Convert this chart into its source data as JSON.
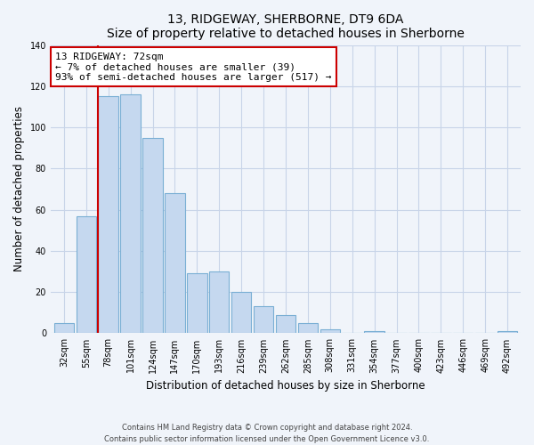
{
  "title": "13, RIDGEWAY, SHERBORNE, DT9 6DA",
  "subtitle": "Size of property relative to detached houses in Sherborne",
  "xlabel": "Distribution of detached houses by size in Sherborne",
  "ylabel": "Number of detached properties",
  "categories": [
    "32sqm",
    "55sqm",
    "78sqm",
    "101sqm",
    "124sqm",
    "147sqm",
    "170sqm",
    "193sqm",
    "216sqm",
    "239sqm",
    "262sqm",
    "285sqm",
    "308sqm",
    "331sqm",
    "354sqm",
    "377sqm",
    "400sqm",
    "423sqm",
    "446sqm",
    "469sqm",
    "492sqm"
  ],
  "values": [
    5,
    57,
    115,
    116,
    95,
    68,
    29,
    30,
    20,
    13,
    9,
    5,
    2,
    0,
    1,
    0,
    0,
    0,
    0,
    0,
    1
  ],
  "bar_color": "#c5d8ef",
  "bar_edge_color": "#7aafd4",
  "vline_color": "#cc0000",
  "annotation_text": "13 RIDGEWAY: 72sqm\n← 7% of detached houses are smaller (39)\n93% of semi-detached houses are larger (517) →",
  "annotation_box_color": "#ffffff",
  "annotation_box_edge": "#cc0000",
  "ylim": [
    0,
    140
  ],
  "yticks": [
    0,
    20,
    40,
    60,
    80,
    100,
    120,
    140
  ],
  "footer_line1": "Contains HM Land Registry data © Crown copyright and database right 2024.",
  "footer_line2": "Contains public sector information licensed under the Open Government Licence v3.0.",
  "bg_color": "#f0f4fa",
  "grid_color": "#c8d4e8"
}
